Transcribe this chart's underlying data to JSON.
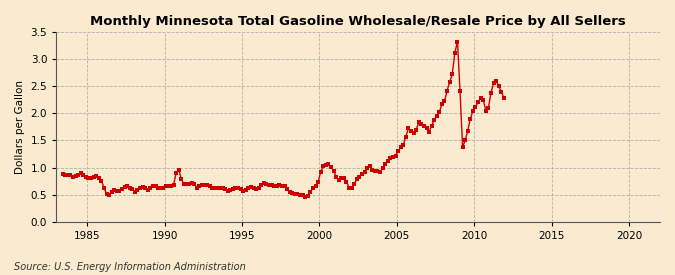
{
  "title": "Monthly Minnesota Total Gasoline Wholesale/Resale Price by All Sellers",
  "ylabel": "Dollars per Gallon",
  "source": "Source: U.S. Energy Information Administration",
  "background_color": "#faebd0",
  "plot_bg_color": "#faebd0",
  "line_color": "#cc0000",
  "xlim": [
    1983.0,
    2022.0
  ],
  "ylim": [
    0.0,
    3.5
  ],
  "xticks": [
    1985,
    1990,
    1995,
    2000,
    2005,
    2010,
    2015,
    2020
  ],
  "yticks": [
    0.0,
    0.5,
    1.0,
    1.5,
    2.0,
    2.5,
    3.0,
    3.5
  ],
  "data": [
    [
      1983.42,
      0.88
    ],
    [
      1983.58,
      0.87
    ],
    [
      1983.75,
      0.87
    ],
    [
      1983.92,
      0.86
    ],
    [
      1984.08,
      0.83
    ],
    [
      1984.25,
      0.84
    ],
    [
      1984.42,
      0.87
    ],
    [
      1984.58,
      0.9
    ],
    [
      1984.75,
      0.87
    ],
    [
      1984.92,
      0.82
    ],
    [
      1985.08,
      0.8
    ],
    [
      1985.25,
      0.8
    ],
    [
      1985.42,
      0.82
    ],
    [
      1985.58,
      0.85
    ],
    [
      1985.75,
      0.8
    ],
    [
      1985.92,
      0.76
    ],
    [
      1986.08,
      0.63
    ],
    [
      1986.25,
      0.52
    ],
    [
      1986.42,
      0.5
    ],
    [
      1986.58,
      0.55
    ],
    [
      1986.75,
      0.58
    ],
    [
      1986.92,
      0.57
    ],
    [
      1987.08,
      0.57
    ],
    [
      1987.25,
      0.61
    ],
    [
      1987.42,
      0.64
    ],
    [
      1987.58,
      0.65
    ],
    [
      1987.75,
      0.62
    ],
    [
      1987.92,
      0.6
    ],
    [
      1988.08,
      0.55
    ],
    [
      1988.25,
      0.58
    ],
    [
      1988.42,
      0.62
    ],
    [
      1988.58,
      0.64
    ],
    [
      1988.75,
      0.63
    ],
    [
      1988.92,
      0.59
    ],
    [
      1989.08,
      0.62
    ],
    [
      1989.25,
      0.66
    ],
    [
      1989.42,
      0.65
    ],
    [
      1989.58,
      0.62
    ],
    [
      1989.75,
      0.62
    ],
    [
      1989.92,
      0.63
    ],
    [
      1990.08,
      0.66
    ],
    [
      1990.25,
      0.66
    ],
    [
      1990.42,
      0.65
    ],
    [
      1990.58,
      0.68
    ],
    [
      1990.75,
      0.9
    ],
    [
      1990.92,
      0.96
    ],
    [
      1991.08,
      0.78
    ],
    [
      1991.25,
      0.7
    ],
    [
      1991.42,
      0.69
    ],
    [
      1991.58,
      0.7
    ],
    [
      1991.75,
      0.71
    ],
    [
      1991.92,
      0.69
    ],
    [
      1992.08,
      0.63
    ],
    [
      1992.25,
      0.65
    ],
    [
      1992.42,
      0.67
    ],
    [
      1992.58,
      0.68
    ],
    [
      1992.75,
      0.68
    ],
    [
      1992.92,
      0.65
    ],
    [
      1993.08,
      0.62
    ],
    [
      1993.25,
      0.63
    ],
    [
      1993.42,
      0.63
    ],
    [
      1993.58,
      0.63
    ],
    [
      1993.75,
      0.62
    ],
    [
      1993.92,
      0.6
    ],
    [
      1994.08,
      0.57
    ],
    [
      1994.25,
      0.59
    ],
    [
      1994.42,
      0.61
    ],
    [
      1994.58,
      0.62
    ],
    [
      1994.75,
      0.63
    ],
    [
      1994.92,
      0.6
    ],
    [
      1995.08,
      0.57
    ],
    [
      1995.25,
      0.59
    ],
    [
      1995.42,
      0.62
    ],
    [
      1995.58,
      0.64
    ],
    [
      1995.75,
      0.63
    ],
    [
      1995.92,
      0.6
    ],
    [
      1996.08,
      0.63
    ],
    [
      1996.25,
      0.68
    ],
    [
      1996.42,
      0.71
    ],
    [
      1996.58,
      0.7
    ],
    [
      1996.75,
      0.68
    ],
    [
      1996.92,
      0.67
    ],
    [
      1997.08,
      0.66
    ],
    [
      1997.25,
      0.66
    ],
    [
      1997.42,
      0.67
    ],
    [
      1997.58,
      0.66
    ],
    [
      1997.75,
      0.65
    ],
    [
      1997.92,
      0.61
    ],
    [
      1998.08,
      0.55
    ],
    [
      1998.25,
      0.53
    ],
    [
      1998.42,
      0.51
    ],
    [
      1998.58,
      0.51
    ],
    [
      1998.75,
      0.5
    ],
    [
      1998.92,
      0.49
    ],
    [
      1999.08,
      0.46
    ],
    [
      1999.25,
      0.47
    ],
    [
      1999.42,
      0.55
    ],
    [
      1999.58,
      0.62
    ],
    [
      1999.75,
      0.65
    ],
    [
      1999.92,
      0.73
    ],
    [
      2000.08,
      0.92
    ],
    [
      2000.25,
      1.02
    ],
    [
      2000.42,
      1.04
    ],
    [
      2000.58,
      1.06
    ],
    [
      2000.75,
      1.01
    ],
    [
      2000.92,
      0.94
    ],
    [
      2001.08,
      0.83
    ],
    [
      2001.25,
      0.77
    ],
    [
      2001.42,
      0.8
    ],
    [
      2001.58,
      0.81
    ],
    [
      2001.75,
      0.73
    ],
    [
      2001.92,
      0.63
    ],
    [
      2002.08,
      0.62
    ],
    [
      2002.25,
      0.7
    ],
    [
      2002.42,
      0.78
    ],
    [
      2002.58,
      0.83
    ],
    [
      2002.75,
      0.88
    ],
    [
      2002.92,
      0.91
    ],
    [
      2003.08,
      1.0
    ],
    [
      2003.25,
      1.03
    ],
    [
      2003.42,
      0.96
    ],
    [
      2003.58,
      0.94
    ],
    [
      2003.75,
      0.93
    ],
    [
      2003.92,
      0.91
    ],
    [
      2004.08,
      0.99
    ],
    [
      2004.25,
      1.07
    ],
    [
      2004.42,
      1.12
    ],
    [
      2004.58,
      1.17
    ],
    [
      2004.75,
      1.2
    ],
    [
      2004.92,
      1.22
    ],
    [
      2005.08,
      1.3
    ],
    [
      2005.25,
      1.37
    ],
    [
      2005.42,
      1.42
    ],
    [
      2005.58,
      1.57
    ],
    [
      2005.75,
      1.72
    ],
    [
      2005.92,
      1.67
    ],
    [
      2006.08,
      1.64
    ],
    [
      2006.25,
      1.7
    ],
    [
      2006.42,
      1.83
    ],
    [
      2006.58,
      1.8
    ],
    [
      2006.75,
      1.77
    ],
    [
      2006.92,
      1.73
    ],
    [
      2007.08,
      1.66
    ],
    [
      2007.25,
      1.77
    ],
    [
      2007.42,
      1.88
    ],
    [
      2007.58,
      1.95
    ],
    [
      2007.75,
      2.02
    ],
    [
      2007.92,
      2.18
    ],
    [
      2008.08,
      2.22
    ],
    [
      2008.25,
      2.42
    ],
    [
      2008.42,
      2.58
    ],
    [
      2008.58,
      2.72
    ],
    [
      2008.75,
      3.12
    ],
    [
      2008.92,
      3.32
    ],
    [
      2009.08,
      2.42
    ],
    [
      2009.25,
      1.38
    ],
    [
      2009.42,
      1.5
    ],
    [
      2009.58,
      1.68
    ],
    [
      2009.75,
      1.9
    ],
    [
      2009.92,
      2.05
    ],
    [
      2010.08,
      2.12
    ],
    [
      2010.25,
      2.2
    ],
    [
      2010.42,
      2.28
    ],
    [
      2010.58,
      2.25
    ],
    [
      2010.75,
      2.05
    ],
    [
      2010.92,
      2.1
    ],
    [
      2011.08,
      2.38
    ],
    [
      2011.25,
      2.55
    ],
    [
      2011.42,
      2.6
    ],
    [
      2011.58,
      2.5
    ],
    [
      2011.75,
      2.4
    ],
    [
      2011.92,
      2.28
    ]
  ]
}
